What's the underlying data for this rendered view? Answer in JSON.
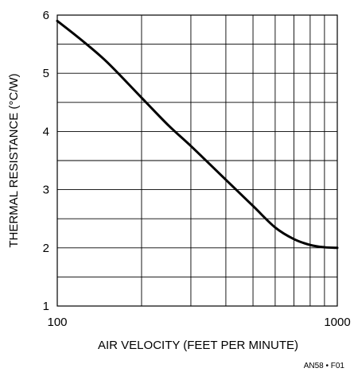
{
  "chart_data": {
    "type": "line",
    "xlabel": "AIR VELOCITY (FEET PER MINUTE)",
    "ylabel": "THERMAL RESISTANCE (°C/W)",
    "xscale": "log",
    "xlim": [
      100,
      1000
    ],
    "ylim": [
      1,
      6
    ],
    "grid": true,
    "x_ticks": [
      {
        "value": 100,
        "label": "100"
      },
      {
        "value": 1000,
        "label": "1000"
      }
    ],
    "x_minor_gridlines": [
      200,
      300,
      400,
      500,
      600,
      700,
      800,
      900
    ],
    "y_ticks": [
      {
        "value": 1,
        "label": "1"
      },
      {
        "value": 2,
        "label": "2"
      },
      {
        "value": 3,
        "label": "3"
      },
      {
        "value": 4,
        "label": "4"
      },
      {
        "value": 5,
        "label": "5"
      },
      {
        "value": 6,
        "label": "6"
      }
    ],
    "y_minor_gridlines": [
      1.5,
      2.5,
      3.5,
      4.5,
      5.5
    ],
    "series": [
      {
        "x": [
          100,
          120,
          150,
          200,
          250,
          300,
          400,
          500,
          600,
          700,
          800,
          900,
          1000
        ],
        "y": [
          5.9,
          5.6,
          5.2,
          4.58,
          4.1,
          3.75,
          3.17,
          2.72,
          2.35,
          2.15,
          2.05,
          2.01,
          2.0
        ]
      }
    ],
    "line_color": "#000000",
    "figure_id": "AN58 • F01"
  }
}
